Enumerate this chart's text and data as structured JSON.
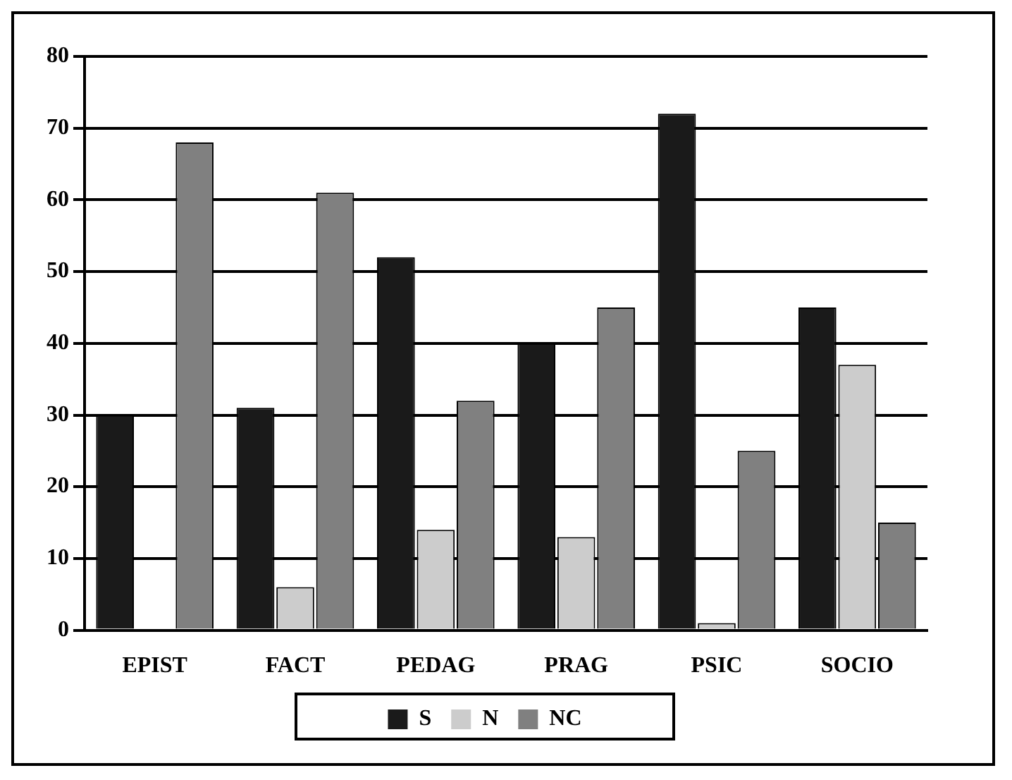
{
  "chart_data": {
    "type": "bar",
    "categories": [
      "EPIST",
      "FACT",
      "PEDAG",
      "PRAG",
      "PSIC",
      "SOCIO"
    ],
    "series": [
      {
        "name": "S",
        "color": "#1a1a1a",
        "values": [
          30,
          31,
          52,
          40,
          72,
          45
        ]
      },
      {
        "name": "N",
        "color": "#cccccc",
        "values": [
          0,
          6,
          14,
          13,
          1,
          37
        ]
      },
      {
        "name": "NC",
        "color": "#808080",
        "values": [
          68,
          61,
          32,
          45,
          25,
          15
        ]
      }
    ],
    "ylim": [
      0,
      80
    ],
    "yticks": [
      0,
      10,
      20,
      30,
      40,
      50,
      60,
      70,
      80
    ],
    "grid": "y",
    "legend": "bottom"
  }
}
